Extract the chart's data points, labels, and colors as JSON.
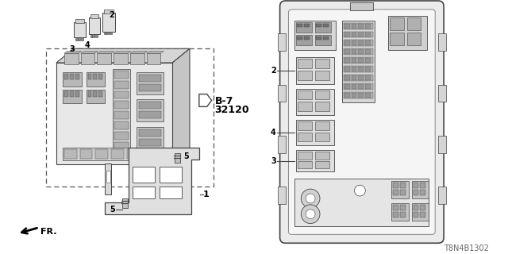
{
  "bg_color": "#ffffff",
  "part_number": "T8N4B1302",
  "line_color": "#444444",
  "fill_light": "#e8e8e8",
  "fill_mid": "#cccccc",
  "fill_dark": "#aaaaaa",
  "fill_white": "#f8f8f8"
}
